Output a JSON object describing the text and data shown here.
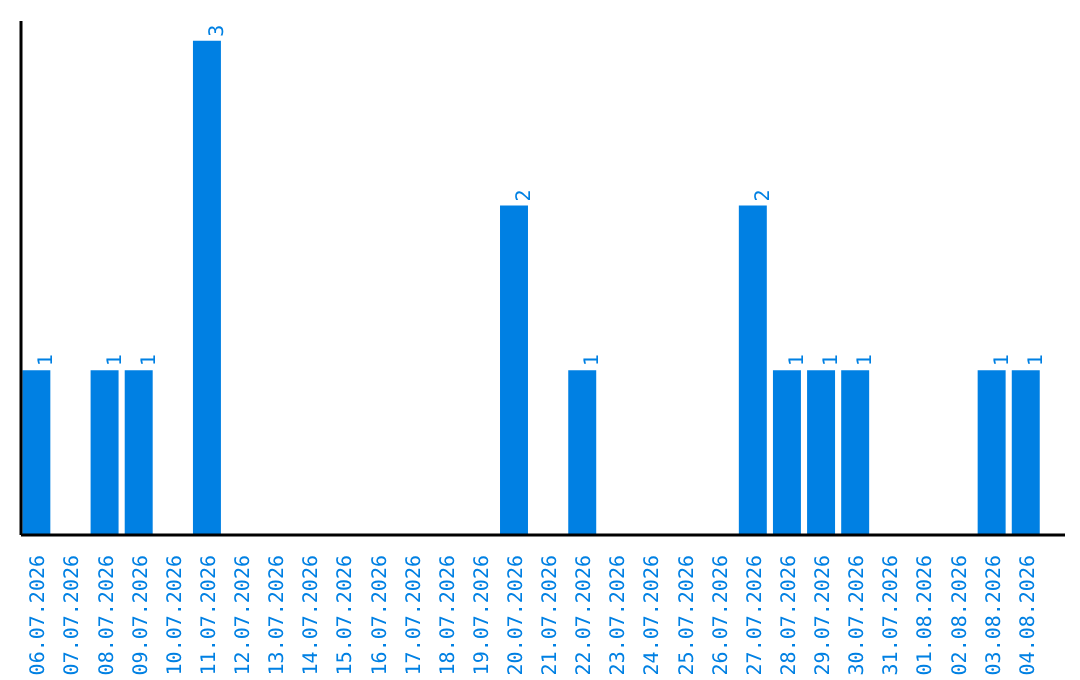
{
  "chart_data": {
    "type": "bar",
    "categories": [
      "06.07.2026",
      "07.07.2026",
      "08.07.2026",
      "09.07.2026",
      "10.07.2026",
      "11.07.2026",
      "12.07.2026",
      "13.07.2026",
      "14.07.2026",
      "15.07.2026",
      "16.07.2026",
      "17.07.2026",
      "18.07.2026",
      "19.07.2026",
      "20.07.2026",
      "21.07.2026",
      "22.07.2026",
      "23.07.2026",
      "24.07.2026",
      "25.07.2026",
      "26.07.2026",
      "27.07.2026",
      "28.07.2026",
      "29.07.2026",
      "30.07.2026",
      "31.07.2026",
      "01.08.2026",
      "02.08.2026",
      "03.08.2026",
      "04.08.2026"
    ],
    "values": [
      1,
      0,
      1,
      1,
      0,
      3,
      0,
      0,
      0,
      0,
      0,
      0,
      0,
      0,
      2,
      0,
      1,
      0,
      0,
      0,
      0,
      2,
      1,
      1,
      1,
      0,
      0,
      0,
      1,
      1
    ],
    "value_labels": [
      "1",
      null,
      "1",
      "1",
      null,
      "3",
      null,
      null,
      null,
      null,
      null,
      null,
      null,
      null,
      "2",
      null,
      "1",
      null,
      null,
      null,
      null,
      "2",
      "1",
      "1",
      "1",
      null,
      null,
      null,
      "1",
      "1"
    ],
    "color": "#0080e3",
    "ylim": [
      0,
      3.12
    ],
    "tick_labels": "x",
    "grid": false
  }
}
